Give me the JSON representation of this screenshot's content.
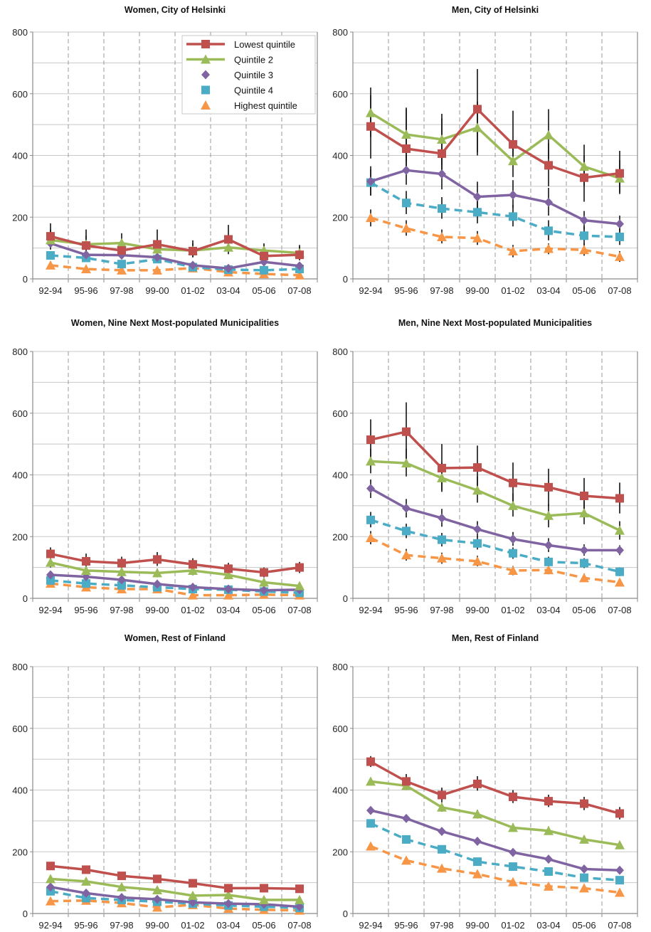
{
  "chart_data": [
    {
      "type": "line",
      "title": "Women, City of Helsinki",
      "categories": [
        "92-94",
        "95-96",
        "97-98",
        "99-00",
        "01-02",
        "03-04",
        "05-06",
        "07-08"
      ],
      "ylim": [
        0,
        800
      ],
      "yticks": [
        0,
        200,
        400,
        600,
        800
      ],
      "grid": true,
      "legend": "top-right",
      "series": [
        {
          "name": "Lowest quintile",
          "values": [
            138,
            108,
            92,
            112,
            90,
            128,
            74,
            78
          ],
          "errors": [
            [
              100,
              180
            ],
            [
              80,
              160
            ],
            [
              70,
              130
            ],
            [
              80,
              160
            ],
            [
              70,
              125
            ],
            [
              100,
              175
            ],
            [
              60,
              110
            ],
            [
              60,
              110
            ]
          ]
        },
        {
          "name": "Quintile 2",
          "values": [
            126,
            112,
            116,
            96,
            92,
            102,
            92,
            84
          ],
          "errors": [
            [
              95,
              160
            ],
            [
              85,
              140
            ],
            [
              90,
              148
            ],
            [
              75,
              120
            ],
            [
              70,
              115
            ],
            [
              80,
              130
            ],
            [
              75,
              115
            ],
            [
              65,
              105
            ]
          ]
        },
        {
          "name": "Quintile 3",
          "values": [
            115,
            78,
            77,
            70,
            44,
            34,
            55,
            42
          ],
          "errors": []
        },
        {
          "name": "Quintile 4",
          "values": [
            76,
            68,
            48,
            64,
            38,
            30,
            28,
            32
          ],
          "errors": []
        },
        {
          "name": "Highest quintile",
          "values": [
            44,
            32,
            28,
            28,
            35,
            22,
            16,
            12
          ],
          "errors": []
        }
      ]
    },
    {
      "type": "line",
      "title": "Men, City of Helsinki",
      "categories": [
        "92-94",
        "95-96",
        "97-98",
        "99-00",
        "01-02",
        "03-04",
        "05-06",
        "07-08"
      ],
      "ylim": [
        0,
        800
      ],
      "yticks": [
        0,
        200,
        400,
        600,
        800
      ],
      "grid": true,
      "series": [
        {
          "name": "Lowest quintile",
          "values": [
            494,
            422,
            406,
            550,
            436,
            368,
            328,
            342
          ],
          "errors": [
            [
              390,
              595
            ],
            [
              340,
              550
            ],
            [
              330,
              520
            ],
            [
              400,
              680
            ],
            [
              370,
              545
            ],
            [
              300,
              440
            ],
            [
              250,
              400
            ],
            [
              280,
              415
            ]
          ]
        },
        {
          "name": "Quintile 2",
          "values": [
            538,
            468,
            452,
            490,
            382,
            466,
            364,
            326
          ],
          "errors": [
            [
              460,
              620
            ],
            [
              380,
              555
            ],
            [
              370,
              535
            ],
            [
              410,
              575
            ],
            [
              330,
              440
            ],
            [
              390,
              550
            ],
            [
              300,
              435
            ],
            [
              275,
              385
            ]
          ]
        },
        {
          "name": "Quintile 3",
          "values": [
            316,
            352,
            340,
            266,
            272,
            248,
            190,
            178
          ],
          "errors": [
            [
              270,
              365
            ],
            [
              305,
              400
            ],
            [
              290,
              395
            ],
            [
              225,
              315
            ],
            [
              230,
              320
            ],
            [
              205,
              295
            ],
            [
              160,
              220
            ],
            [
              155,
              205
            ]
          ]
        },
        {
          "name": "Quintile 4",
          "values": [
            312,
            246,
            228,
            216,
            202,
            156,
            140,
            136
          ],
          "errors": [
            [
              270,
              355
            ],
            [
              210,
              285
            ],
            [
              195,
              265
            ],
            [
              180,
              255
            ],
            [
              170,
              240
            ],
            [
              125,
              190
            ],
            [
              110,
              170
            ],
            [
              110,
              165
            ]
          ]
        },
        {
          "name": "Highest quintile",
          "values": [
            198,
            164,
            136,
            132,
            90,
            98,
            94,
            72
          ],
          "errors": [
            [
              170,
              225
            ],
            [
              140,
              190
            ],
            [
              115,
              160
            ],
            [
              110,
              155
            ],
            [
              70,
              110
            ],
            [
              80,
              115
            ],
            [
              75,
              115
            ],
            [
              55,
              90
            ]
          ]
        }
      ]
    },
    {
      "type": "line",
      "title": "Women, Nine Next Most-populated Municipalities",
      "categories": [
        "92-94",
        "95-96",
        "97-98",
        "99-00",
        "01-02",
        "03-04",
        "05-06",
        "07-08"
      ],
      "ylim": [
        0,
        800
      ],
      "yticks": [
        0,
        200,
        400,
        600,
        800
      ],
      "grid": true,
      "series": [
        {
          "name": "Lowest quintile",
          "values": [
            144,
            120,
            114,
            126,
            110,
            96,
            84,
            100
          ],
          "errors": [
            [
              125,
              165
            ],
            [
              100,
              145
            ],
            [
              95,
              135
            ],
            [
              105,
              150
            ],
            [
              90,
              130
            ],
            [
              80,
              115
            ],
            [
              68,
              100
            ],
            [
              82,
              118
            ]
          ]
        },
        {
          "name": "Quintile 2",
          "values": [
            116,
            90,
            86,
            82,
            90,
            76,
            52,
            40
          ],
          "errors": [
            [
              100,
              132
            ],
            [
              75,
              105
            ],
            [
              72,
              100
            ],
            [
              68,
              96
            ],
            [
              75,
              105
            ],
            [
              62,
              90
            ],
            [
              40,
              65
            ],
            [
              30,
              52
            ]
          ]
        },
        {
          "name": "Quintile 3",
          "values": [
            76,
            70,
            60,
            46,
            36,
            30,
            26,
            28
          ],
          "errors": []
        },
        {
          "name": "Quintile 4",
          "values": [
            58,
            48,
            42,
            36,
            30,
            28,
            22,
            18
          ],
          "errors": []
        },
        {
          "name": "Highest quintile",
          "values": [
            48,
            36,
            30,
            30,
            10,
            10,
            12,
            10
          ],
          "errors": []
        }
      ]
    },
    {
      "type": "line",
      "title": "Men, Nine Next Most-populated Municipalities",
      "categories": [
        "92-94",
        "95-96",
        "97-98",
        "99-00",
        "01-02",
        "03-04",
        "05-06",
        "07-08"
      ],
      "ylim": [
        0,
        800
      ],
      "yticks": [
        0,
        200,
        400,
        600,
        800
      ],
      "grid": true,
      "series": [
        {
          "name": "Lowest quintile",
          "values": [
            514,
            540,
            422,
            424,
            374,
            360,
            332,
            324
          ],
          "errors": [
            [
              455,
              580
            ],
            [
              450,
              635
            ],
            [
              350,
              500
            ],
            [
              350,
              495
            ],
            [
              310,
              440
            ],
            [
              300,
              420
            ],
            [
              275,
              390
            ],
            [
              275,
              375
            ]
          ]
        },
        {
          "name": "Quintile 2",
          "values": [
            444,
            438,
            390,
            350,
            300,
            268,
            276,
            220
          ],
          "errors": [
            [
              405,
              485
            ],
            [
              395,
              485
            ],
            [
              345,
              440
            ],
            [
              310,
              395
            ],
            [
              265,
              340
            ],
            [
              230,
              305
            ],
            [
              240,
              315
            ],
            [
              190,
              250
            ]
          ]
        },
        {
          "name": "Quintile 3",
          "values": [
            356,
            292,
            260,
            224,
            192,
            172,
            156,
            156
          ],
          "errors": [
            [
              325,
              385
            ],
            [
              262,
              322
            ],
            [
              232,
              290
            ],
            [
              198,
              250
            ],
            [
              170,
              215
            ],
            [
              150,
              195
            ],
            [
              138,
              175
            ],
            [
              140,
              172
            ]
          ]
        },
        {
          "name": "Quintile 4",
          "values": [
            254,
            218,
            190,
            178,
            146,
            118,
            114,
            86
          ],
          "errors": [
            [
              230,
              280
            ],
            [
              195,
              242
            ],
            [
              168,
              212
            ],
            [
              158,
              200
            ],
            [
              128,
              165
            ],
            [
              102,
              135
            ],
            [
              98,
              130
            ],
            [
              72,
              100
            ]
          ]
        },
        {
          "name": "Highest quintile",
          "values": [
            196,
            140,
            130,
            120,
            90,
            92,
            66,
            52
          ],
          "errors": [
            [
              175,
              218
            ],
            [
              122,
              160
            ],
            [
              112,
              148
            ],
            [
              104,
              138
            ],
            [
              75,
              105
            ],
            [
              78,
              108
            ],
            [
              54,
              80
            ],
            [
              40,
              64
            ]
          ]
        }
      ]
    },
    {
      "type": "line",
      "title": "Women, Rest of Finland",
      "categories": [
        "92-94",
        "95-96",
        "97-98",
        "99-00",
        "01-02",
        "03-04",
        "05-06",
        "07-08"
      ],
      "ylim": [
        0,
        800
      ],
      "yticks": [
        0,
        200,
        400,
        600,
        800
      ],
      "grid": true,
      "series": [
        {
          "name": "Lowest quintile",
          "values": [
            154,
            142,
            122,
            112,
            98,
            82,
            82,
            80
          ],
          "errors": []
        },
        {
          "name": "Quintile 2",
          "values": [
            112,
            104,
            86,
            76,
            58,
            60,
            44,
            44
          ],
          "errors": []
        },
        {
          "name": "Quintile 3",
          "values": [
            86,
            66,
            52,
            46,
            36,
            32,
            30,
            22
          ],
          "errors": []
        },
        {
          "name": "Quintile 4",
          "values": [
            72,
            50,
            44,
            38,
            32,
            26,
            22,
            18
          ],
          "errors": []
        },
        {
          "name": "Highest quintile",
          "values": [
            40,
            42,
            34,
            20,
            28,
            16,
            12,
            10
          ],
          "errors": []
        }
      ]
    },
    {
      "type": "line",
      "title": "Men, Rest of Finland",
      "categories": [
        "92-94",
        "95-96",
        "97-98",
        "99-00",
        "01-02",
        "03-04",
        "05-06",
        "07-08"
      ],
      "ylim": [
        0,
        800
      ],
      "yticks": [
        0,
        200,
        400,
        600,
        800
      ],
      "grid": true,
      "series": [
        {
          "name": "Lowest quintile",
          "values": [
            492,
            428,
            384,
            420,
            378,
            364,
            356,
            324
          ],
          "errors": [
            [
              475,
              510
            ],
            [
              405,
              452
            ],
            [
              360,
              408
            ],
            [
              398,
              445
            ],
            [
              358,
              400
            ],
            [
              345,
              385
            ],
            [
              335,
              378
            ],
            [
              305,
              345
            ]
          ]
        },
        {
          "name": "Quintile 2",
          "values": [
            428,
            414,
            344,
            322,
            278,
            268,
            240,
            222
          ],
          "errors": [
            [
              415,
              440
            ],
            [
              400,
              428
            ],
            [
              330,
              358
            ],
            [
              308,
              336
            ],
            [
              265,
              292
            ],
            [
              255,
              282
            ],
            [
              228,
              252
            ],
            [
              210,
              234
            ]
          ]
        },
        {
          "name": "Quintile 3",
          "values": [
            334,
            308,
            266,
            234,
            198,
            176,
            144,
            140
          ],
          "errors": []
        },
        {
          "name": "Quintile 4",
          "values": [
            292,
            240,
            208,
            168,
            152,
            136,
            116,
            108
          ],
          "errors": []
        },
        {
          "name": "Highest quintile",
          "values": [
            218,
            172,
            146,
            128,
            102,
            88,
            82,
            68
          ],
          "errors": []
        }
      ]
    }
  ],
  "series_styles": [
    {
      "color": "#c0504d",
      "marker": "square",
      "line": "solid"
    },
    {
      "color": "#9bbb59",
      "marker": "triangle",
      "line": "solid"
    },
    {
      "color": "#8064a2",
      "marker": "diamond",
      "line": "solid"
    },
    {
      "color": "#4bacc6",
      "marker": "square",
      "line": "dashed"
    },
    {
      "color": "#f79646",
      "marker": "triangle",
      "line": "dashed"
    }
  ]
}
